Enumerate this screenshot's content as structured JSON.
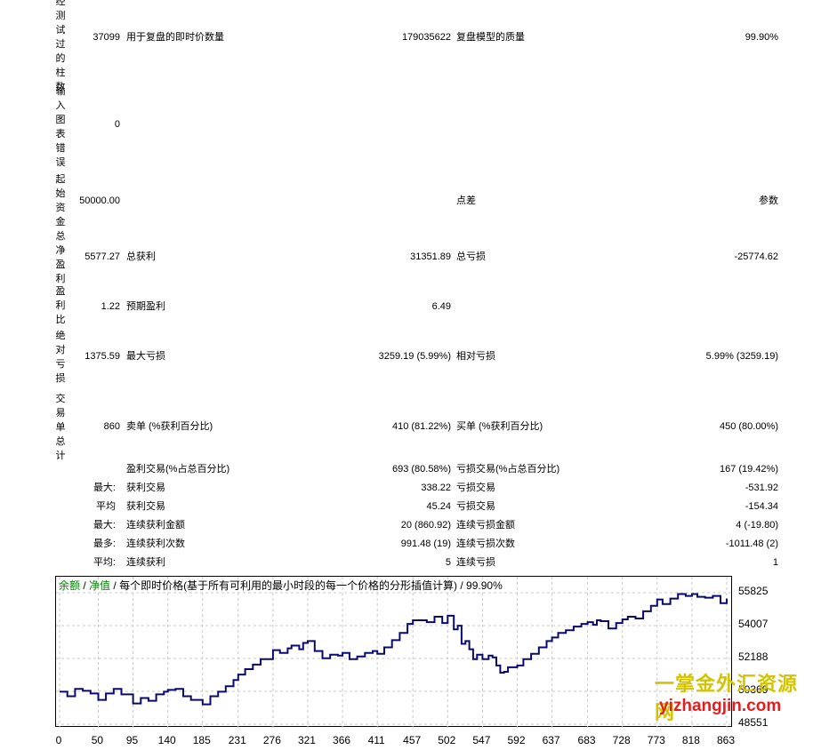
{
  "vertical_labels": [
    "经测试过的柱数",
    "输入图表错误",
    "起始资金",
    "总净盈利",
    "盈利比",
    "绝对亏损",
    "交易单总计"
  ],
  "rows": {
    "bars": {
      "value": "37099",
      "l1": "用于复盘的即时价数量",
      "v1": "179035622",
      "l2": "复盘模型的质量",
      "v2": "99.90%"
    },
    "errors": {
      "value": "0"
    },
    "deposit": {
      "value": "50000.00",
      "l1": "点差",
      "v2": "参数"
    },
    "net": {
      "value": "5577.27",
      "l1": "总获利",
      "v1": "31351.89",
      "l2": "总亏损",
      "v2": "-25774.62"
    },
    "pf": {
      "value": "1.22",
      "l1": "预期盈利",
      "v1": "6.49"
    },
    "dd": {
      "value": "1375.59",
      "l1": "最大亏损",
      "v1": "3259.19 (5.99%)",
      "l2": "相对亏损",
      "v2": "5.99% (3259.19)"
    },
    "trades": {
      "value": "860",
      "l1": "卖单 (%获利百分比)",
      "v1": "410 (81.22%)",
      "l2": "买单 (%获利百分比)",
      "v2": "450 (80.00%)"
    }
  },
  "stats": [
    {
      "p": "",
      "l1": "盈利交易(%占总百分比)",
      "v1": "693 (80.58%)",
      "l2": "亏损交易(%占总百分比)",
      "v2": "167 (19.42%)"
    },
    {
      "p": "最大:",
      "l1": "获利交易",
      "v1": "338.22",
      "l2": "亏损交易",
      "v2": "-531.92"
    },
    {
      "p": "平均",
      "l1": "获利交易",
      "v1": "45.24",
      "l2": "亏损交易",
      "v2": "-154.34"
    },
    {
      "p": "最大:",
      "l1": "连续获利金额",
      "v1": "20 (860.92)",
      "l2": "连续亏损金额",
      "v2": "4 (-19.80)"
    },
    {
      "p": "最多:",
      "l1": "连续获利次数",
      "v1": "991.48 (19)",
      "l2": "连续亏损次数",
      "v2": "-1011.48 (2)"
    },
    {
      "p": "平均:",
      "l1": "连续获利",
      "v1": "5",
      "l2": "连续亏损",
      "v2": "1"
    }
  ],
  "chart_header": {
    "balance": "余额",
    "sep1": " / ",
    "equity": "净值",
    "sep2": " / ",
    "desc": "每个即时价格(基于所有可利用的最小时段的每一个价格的分形插值计算) / 99.90%"
  },
  "watermark": {
    "line1": "一掌金外汇资源网",
    "line2": "yizhangjin.com"
  },
  "chart_data": {
    "type": "line",
    "x_ticks": [
      "0",
      "50",
      "95",
      "140",
      "185",
      "231",
      "276",
      "321",
      "366",
      "411",
      "457",
      "502",
      "547",
      "592",
      "637",
      "683",
      "728",
      "773",
      "818",
      "863"
    ],
    "y_ticks": [
      "55825",
      "54007",
      "52188",
      "50369",
      "48551"
    ],
    "ylim": [
      48551,
      55825
    ],
    "xlim": [
      0,
      863
    ],
    "line_color": "#0a0a6e",
    "grid": true,
    "series": [
      {
        "x": [
          0,
          10,
          20,
          30,
          40,
          50,
          60,
          70,
          80,
          95,
          105,
          115,
          125,
          135,
          140,
          150,
          160,
          170,
          185,
          195,
          205,
          215,
          225,
          231,
          240,
          250,
          260,
          276,
          285,
          295,
          300,
          310,
          315,
          321,
          330,
          340,
          350,
          360,
          366,
          375,
          385,
          395,
          405,
          411,
          420,
          430,
          440,
          450,
          457,
          465,
          475,
          485,
          495,
          502,
          510,
          515,
          520,
          525,
          530,
          535,
          540,
          547,
          555,
          560,
          565,
          570,
          575,
          580,
          585,
          592,
          600,
          610,
          620,
          630,
          637,
          645,
          655,
          665,
          675,
          683,
          690,
          695,
          700,
          710,
          720,
          728,
          735,
          745,
          755,
          765,
          773,
          780,
          790,
          800,
          810,
          818,
          825,
          835,
          845,
          855,
          863
        ],
        "y": [
          50350,
          50100,
          50500,
          50400,
          50250,
          49900,
          50250,
          50500,
          50200,
          49700,
          50000,
          49850,
          50200,
          50350,
          50450,
          50500,
          50100,
          49900,
          49650,
          50100,
          50350,
          50650,
          51000,
          51300,
          51600,
          51850,
          52150,
          52650,
          52500,
          52750,
          52900,
          52700,
          53050,
          53150,
          52600,
          52200,
          52400,
          52350,
          52500,
          52150,
          52300,
          52500,
          52600,
          52450,
          52800,
          53200,
          53600,
          54100,
          54300,
          54300,
          54200,
          54500,
          54150,
          54550,
          53800,
          54000,
          53000,
          53150,
          52700,
          52150,
          52400,
          52150,
          52350,
          52250,
          51800,
          51400,
          51450,
          51700,
          51700,
          51800,
          52150,
          52450,
          52800,
          53150,
          53350,
          53600,
          53750,
          53950,
          54100,
          54200,
          54050,
          54300,
          54250,
          53850,
          54150,
          54350,
          54500,
          54400,
          54800,
          55100,
          55450,
          55200,
          55500,
          55750,
          55650,
          55750,
          55600,
          55550,
          55650,
          55250,
          55500
        ]
      }
    ]
  }
}
